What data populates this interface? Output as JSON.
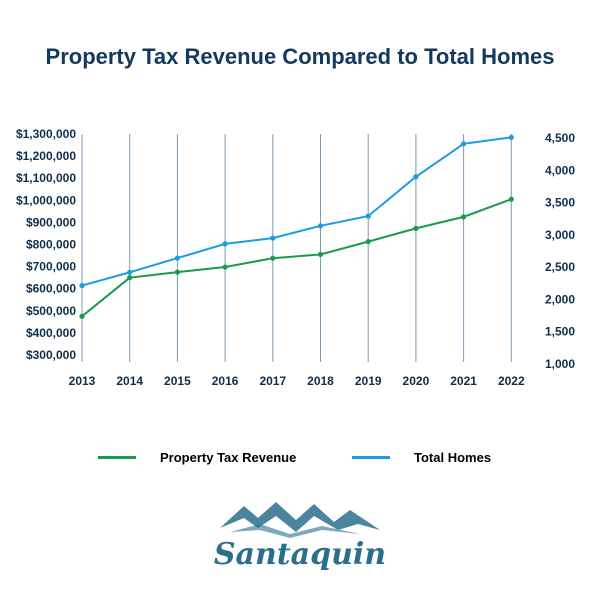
{
  "title": "Property Tax Revenue Compared to Total Homes",
  "colors": {
    "title": "#13395c",
    "tick": "#0f2e4a",
    "revenue": "#1a9a4c",
    "homes": "#1b9be3",
    "grid": "#7d9bb3",
    "logo": "#2b6f8e"
  },
  "legend": [
    {
      "label": "Property Tax Revenue",
      "color": "#1a9a4c"
    },
    {
      "label": "Total Homes",
      "color": "#1b9be3"
    }
  ],
  "chart_data": {
    "type": "line",
    "title": "Property Tax Revenue Compared to Total Homes",
    "x": [
      "2013",
      "2014",
      "2015",
      "2016",
      "2017",
      "2018",
      "2019",
      "2020",
      "2021",
      "2022"
    ],
    "y_left": {
      "min": 300000,
      "max": 1300000,
      "ticks": [
        "$300,000",
        "$400,000",
        "$500,000",
        "$600,000",
        "$700,000",
        "$800,000",
        "$900,000",
        "$1,000,000",
        "$1,100,000",
        "$1,200,000",
        "$1,300,000"
      ]
    },
    "y_right": {
      "min": 1000,
      "max": 4500,
      "ticks": [
        "1,000",
        "1,500",
        "2,000",
        "2,500",
        "3,000",
        "3,500",
        "4,000",
        "4,500"
      ]
    },
    "series": [
      {
        "name": "Property Tax Revenue",
        "axis": "left",
        "values": [
          475000,
          650000,
          675000,
          698000,
          738000,
          755000,
          813000,
          873000,
          925000,
          1005000
        ]
      },
      {
        "name": "Total Homes",
        "axis": "right",
        "values": [
          2215,
          2420,
          2640,
          2860,
          2950,
          3140,
          3290,
          3900,
          4410,
          4510
        ]
      }
    ],
    "grid": "vertical",
    "legend_position": "bottom"
  },
  "logo": {
    "text": "Santaquin"
  }
}
